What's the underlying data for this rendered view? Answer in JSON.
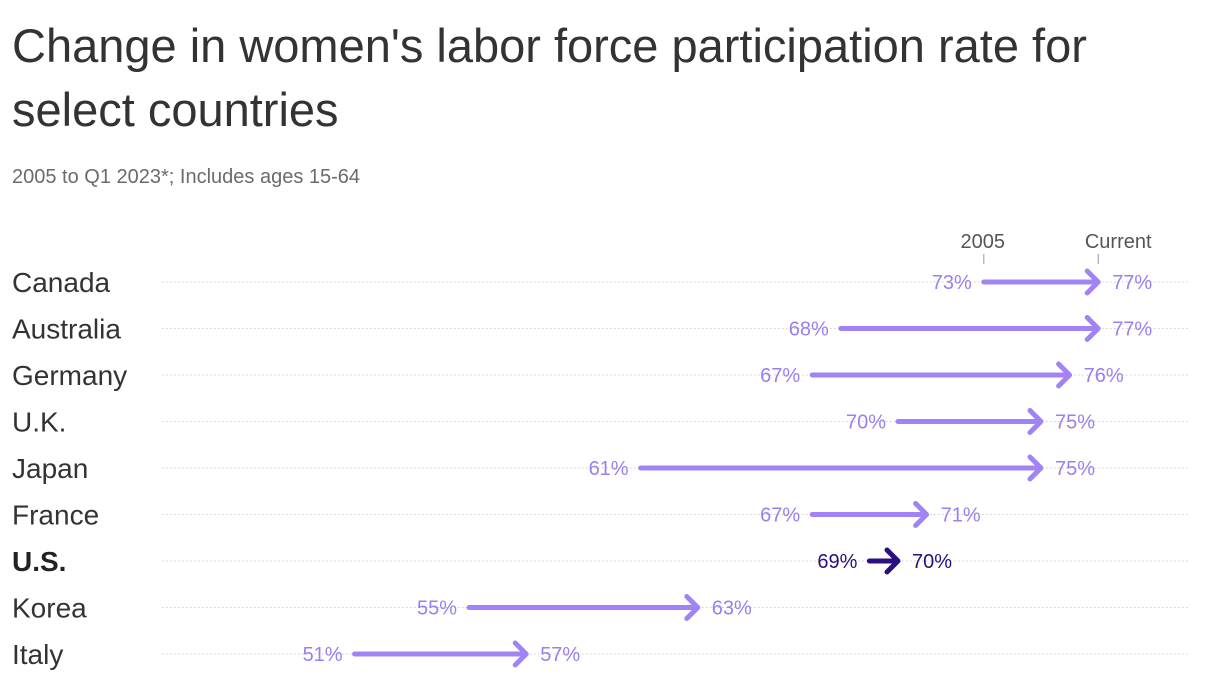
{
  "title": "Change in women's labor force participation rate for select countries",
  "subtitle": "2005 to Q1 2023*; Includes ages 15-64",
  "colors": {
    "arrow": "#a183f5",
    "label": "#9a7ff0",
    "highlight": "#2a0e82",
    "text": "#333333",
    "grid": "#cccccc"
  },
  "chart_data": {
    "type": "arrow",
    "legend": [
      "2005",
      "Current"
    ],
    "categories": [
      "Canada",
      "Australia",
      "Germany",
      "U.K.",
      "Japan",
      "France",
      "U.S.",
      "Korea",
      "Italy"
    ],
    "series": [
      {
        "name": "2005",
        "values": [
          73,
          68,
          67,
          70,
          61,
          67,
          69,
          55,
          51
        ]
      },
      {
        "name": "Current",
        "values": [
          77,
          77,
          76,
          75,
          75,
          71,
          70,
          63,
          57
        ]
      }
    ],
    "highlight": "U.S.",
    "value_suffix": "%"
  }
}
